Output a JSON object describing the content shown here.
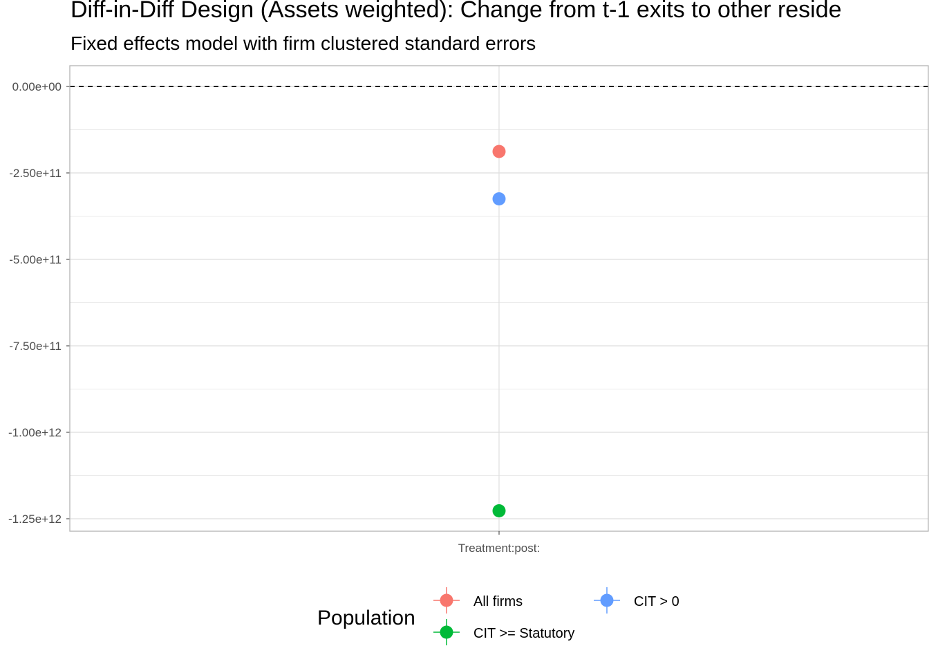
{
  "chart_data": {
    "type": "scatter",
    "title": "Diff-in-Diff Design (Assets weighted): Change from t-1 exits to other reside",
    "subtitle": "Fixed effects model with firm clustered standard errors",
    "xlabel": "",
    "ylabel": "",
    "categories": [
      "Treatment:post:"
    ],
    "ylim": [
      -1300000000000.0,
      60000000000.0
    ],
    "yticks": [
      0,
      -250000000000,
      -500000000000,
      -750000000000,
      -1000000000000,
      -1250000000000
    ],
    "ytick_labels": [
      "0.00e+00",
      "-2.50e+11",
      "-5.00e+11",
      "-7.50e+11",
      "-1.00e+12",
      "-1.25e+12"
    ],
    "reference_line": {
      "y": 0,
      "style": "dashed"
    },
    "grid": true,
    "legend": {
      "title": "Population",
      "placement": "bottom"
    },
    "series": [
      {
        "name": "All firms",
        "color": "#F8766D",
        "values": [
          -188000000000
        ]
      },
      {
        "name": "CIT > 0",
        "color": "#619CFF",
        "values": [
          -325000000000
        ]
      },
      {
        "name": "CIT >= Statutory",
        "color": "#00BA38",
        "values": [
          -1227000000000
        ]
      }
    ]
  }
}
